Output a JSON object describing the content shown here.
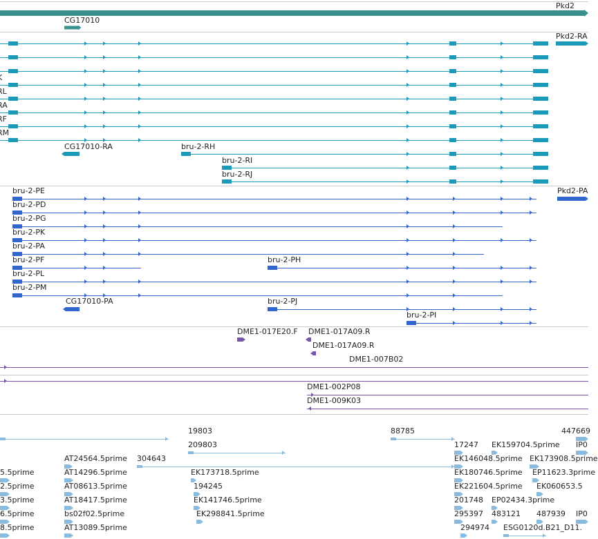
{
  "colors": {
    "gene": "#3a8f8f",
    "mrna": "#1a9ab8",
    "cds": "#3366cc",
    "clone": "#7755aa",
    "est": "#88bbdd",
    "separator": "#c8c8c8"
  },
  "tracks": [
    {
      "id": "gene",
      "features": [
        {
          "label": "Pkd2",
          "color": "gene",
          "exons": [
            [
              0,
              851
            ]
          ]
        },
        {
          "label": "CG17010",
          "color": "gene",
          "exons": [
            [
              93,
              119
            ]
          ]
        }
      ]
    },
    {
      "id": "mrna",
      "features": [
        {
          "label": "Pkd2-RA",
          "color": "mrna",
          "strand": 1,
          "exons": [
            [
              804,
              851
            ]
          ]
        },
        {
          "label": "",
          "color": "mrna",
          "strand": 1,
          "exons": [
            [
              0,
              793
            ]
          ]
        },
        {
          "label": "",
          "color": "mrna",
          "strand": 1,
          "exons": [
            [
              0,
              793
            ]
          ]
        },
        {
          "label": "",
          "color": "mrna",
          "strand": 1,
          "exons": [
            [
              0,
              793
            ]
          ]
        },
        {
          "label": "K",
          "color": "mrna",
          "strand": 1,
          "exons": [
            [
              0,
              793
            ]
          ]
        },
        {
          "label": "RL",
          "color": "mrna",
          "strand": 1,
          "exons": [
            [
              0,
              793
            ]
          ]
        },
        {
          "label": "RA",
          "color": "mrna",
          "strand": 1,
          "exons": [
            [
              0,
              793
            ]
          ]
        },
        {
          "label": "RF",
          "color": "mrna",
          "strand": 1,
          "exons": [
            [
              0,
              793
            ]
          ]
        },
        {
          "label": "RM",
          "color": "mrna",
          "strand": 1,
          "exons": [
            [
              0,
              793
            ]
          ]
        },
        {
          "label": "CG17010-RA",
          "color": "mrna",
          "strand": -1,
          "exons": [
            [
              93,
              119
            ]
          ]
        },
        {
          "label": "bru-2-RH",
          "color": "mrna",
          "strand": 1,
          "exons": [
            [
              262,
              793
            ]
          ]
        },
        {
          "label": "bru-2-RI",
          "color": "mrna",
          "strand": 1,
          "exons": [
            [
              321,
              793
            ]
          ]
        },
        {
          "label": "bru-2-RJ",
          "color": "mrna",
          "strand": 1,
          "exons": [
            [
              321,
              793
            ]
          ]
        }
      ]
    },
    {
      "id": "cds",
      "features": [
        {
          "label": "bru-2-PE",
          "color": "cds",
          "strand": 1,
          "exons": [
            [
              18,
              776
            ]
          ]
        },
        {
          "label": "Pkd2-PA",
          "color": "cds",
          "strand": 1,
          "exons": [
            [
              806,
              851
            ]
          ]
        },
        {
          "label": "bru-2-PD",
          "color": "cds",
          "strand": 1,
          "exons": [
            [
              18,
              776
            ]
          ]
        },
        {
          "label": "bru-2-PG",
          "color": "cds",
          "strand": 1,
          "exons": [
            [
              18,
              727
            ]
          ]
        },
        {
          "label": "bru-2-PK",
          "color": "cds",
          "strand": 1,
          "exons": [
            [
              18,
              776
            ]
          ]
        },
        {
          "label": "bru-2-PA",
          "color": "cds",
          "strand": 1,
          "exons": [
            [
              18,
              700
            ]
          ]
        },
        {
          "label": "bru-2-PF",
          "color": "cds",
          "strand": 1,
          "exons": [
            [
              18,
              204
            ]
          ]
        },
        {
          "label": "bru-2-PH",
          "color": "cds",
          "strand": 1,
          "exons": [
            [
              387,
              776
            ]
          ]
        },
        {
          "label": "bru-2-PL",
          "color": "cds",
          "strand": 1,
          "exons": [
            [
              18,
              776
            ]
          ]
        },
        {
          "label": "bru-2-PM",
          "color": "cds",
          "strand": 1,
          "exons": [
            [
              18,
              727
            ]
          ]
        },
        {
          "label": "CG17010-PA",
          "color": "cds",
          "strand": -1,
          "exons": [
            [
              95,
              119
            ]
          ]
        },
        {
          "label": "bru-2-PJ",
          "color": "cds",
          "strand": 1,
          "exons": [
            [
              387,
              776
            ]
          ]
        },
        {
          "label": "bru-2-PI",
          "color": "cds",
          "strand": 1,
          "exons": [
            [
              588,
              776
            ]
          ]
        }
      ]
    },
    {
      "id": "clones",
      "features": [
        {
          "label": "DME1-017E20.F",
          "color": "clone",
          "strand": 1,
          "exons": [
            [
              343,
              355
            ]
          ]
        },
        {
          "label": "DME1-017A09.R",
          "color": "clone",
          "strand": -1,
          "exons": [
            [
              446,
              454
            ]
          ]
        },
        {
          "label": "DME1-017A09.R",
          "color": "clone",
          "strand": -1,
          "exons": [
            [
              453,
              458
            ]
          ]
        },
        {
          "label": "DME1-007B02",
          "color": "clone",
          "strand": 1,
          "exons": [
            [
              0,
              851
            ]
          ]
        },
        {
          "label": "",
          "color": "clone",
          "strand": 1,
          "exons": [
            [
              0,
              851
            ]
          ]
        },
        {
          "label": "DME1-002P08",
          "color": "clone",
          "strand": 1,
          "exons": [
            [
              444,
              851
            ]
          ]
        },
        {
          "label": "DME1-009K03",
          "color": "clone",
          "strand": -1,
          "exons": [
            [
              444,
              851
            ]
          ]
        }
      ]
    },
    {
      "id": "est",
      "features": [
        {
          "label": "19803",
          "color": "est",
          "strand": 1,
          "exons": [
            [
              0,
              244
            ]
          ]
        },
        {
          "label": "88785",
          "color": "est",
          "strand": 1,
          "exons": [
            [
              565,
              658
            ]
          ]
        },
        {
          "label": "447669",
          "color": "est",
          "strand": 1,
          "exons": [
            [
              833,
              851
            ]
          ]
        },
        {
          "label": "209803",
          "color": "est",
          "strand": 1,
          "exons": [
            [
              272,
              413
            ]
          ]
        },
        {
          "label": "IP0",
          "color": "est",
          "strand": 1,
          "exons": [
            [
              833,
              851
            ]
          ]
        },
        {
          "label": "AT24564.5prime",
          "color": "est",
          "strand": 1,
          "exons": [
            [
              93,
              105
            ]
          ]
        },
        {
          "label": "304643",
          "color": "est",
          "strand": 1,
          "exons": [
            [
              198,
              658
            ]
          ]
        },
        {
          "label": "17247",
          "color": "est",
          "strand": 1,
          "exons": [
            [
              657,
              670
            ]
          ]
        },
        {
          "label": "EK159704.5prime",
          "color": "est",
          "strand": 1,
          "exons": [
            [
              711,
              720
            ]
          ]
        },
        {
          "label": "EK146048.5prime",
          "color": "est",
          "strand": 1,
          "exons": [
            [
              657,
              670
            ]
          ]
        },
        {
          "label": "EK173908.5prime",
          "color": "est",
          "strand": 1,
          "exons": [
            [
              766,
              780
            ]
          ]
        },
        {
          "label": "5.5prime",
          "color": "est",
          "strand": 1,
          "exons": [
            [
              0,
              14
            ]
          ]
        },
        {
          "label": "AT14296.5prime",
          "color": "est",
          "strand": 1,
          "exons": [
            [
              93,
              106
            ]
          ]
        },
        {
          "label": "EK173718.5prime",
          "color": "est",
          "strand": 1,
          "exons": [
            [
              276,
              284
            ]
          ]
        },
        {
          "label": "EK180746.5prime",
          "color": "est",
          "strand": 1,
          "exons": [
            [
              657,
              670
            ]
          ]
        },
        {
          "label": "EP11623.3prime",
          "color": "est",
          "strand": 1,
          "exons": [
            [
              770,
              780
            ]
          ]
        },
        {
          "label": "2.5prime",
          "color": "est",
          "strand": 1,
          "exons": [
            [
              0,
              14
            ]
          ]
        },
        {
          "label": "AT08613.5prime",
          "color": "est",
          "strand": 1,
          "exons": [
            [
              93,
              106
            ]
          ]
        },
        {
          "label": "194245",
          "color": "est",
          "strand": 1,
          "exons": [
            [
              280,
              290
            ]
          ]
        },
        {
          "label": "EK221604.5prime",
          "color": "est",
          "strand": 1,
          "exons": [
            [
              657,
              670
            ]
          ]
        },
        {
          "label": "EK060653.5",
          "color": "est",
          "strand": 1,
          "exons": [
            [
              776,
              786
            ]
          ]
        },
        {
          "label": "3.5prime",
          "color": "est",
          "strand": 1,
          "exons": [
            [
              0,
              14
            ]
          ]
        },
        {
          "label": "AT18417.5prime",
          "color": "est",
          "strand": 1,
          "exons": [
            [
              93,
              106
            ]
          ]
        },
        {
          "label": "EK141746.5prime",
          "color": "est",
          "strand": 1,
          "exons": [
            [
              280,
              290
            ]
          ]
        },
        {
          "label": "201748",
          "color": "est",
          "strand": 1,
          "exons": [
            [
              657,
              670
            ]
          ]
        },
        {
          "label": "EP02434.3prime",
          "color": "est",
          "strand": 1,
          "exons": [
            [
              711,
              720
            ]
          ]
        },
        {
          "label": "6.5prime",
          "color": "est",
          "strand": 1,
          "exons": [
            [
              0,
              14
            ]
          ]
        },
        {
          "label": "bs02f02.5prime",
          "color": "est",
          "strand": 1,
          "exons": [
            [
              93,
              106
            ]
          ]
        },
        {
          "label": "EK298841.5prime",
          "color": "est",
          "strand": 1,
          "exons": [
            [
              284,
              294
            ]
          ]
        },
        {
          "label": "295397",
          "color": "est",
          "strand": 1,
          "exons": [
            [
              657,
              670
            ]
          ]
        },
        {
          "label": "483121",
          "color": "est",
          "strand": 1,
          "exons": [
            [
              711,
              720
            ]
          ]
        },
        {
          "label": "487939",
          "color": "est",
          "strand": 1,
          "exons": [
            [
              776,
              786
            ]
          ]
        },
        {
          "label": "IP0",
          "color": "est",
          "strand": 1,
          "exons": [
            [
              833,
              851
            ]
          ]
        },
        {
          "label": "8.5prime",
          "color": "est",
          "strand": 1,
          "exons": [
            [
              0,
              14
            ]
          ]
        },
        {
          "label": "AT13089.5prime",
          "color": "est",
          "strand": 1,
          "exons": [
            [
              93,
              106
            ]
          ]
        },
        {
          "label": "294974",
          "color": "est",
          "strand": 1,
          "exons": [
            [
              666,
              676
            ]
          ]
        },
        {
          "label": "ESG0120d.B21_D11.",
          "color": "est",
          "strand": 1,
          "exons": [
            [
              728,
              790
            ]
          ]
        }
      ]
    }
  ]
}
